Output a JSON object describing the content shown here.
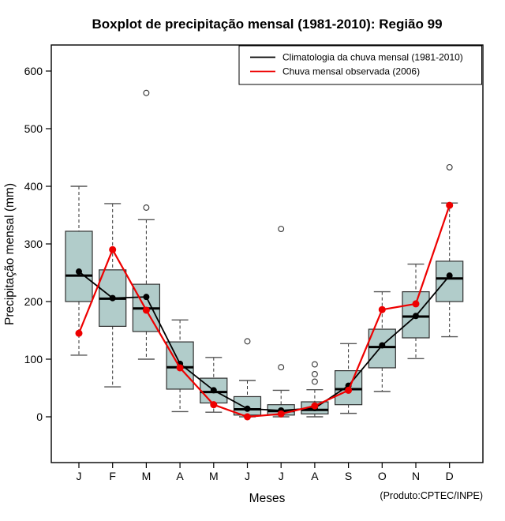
{
  "title": "Boxplot de precipitação mensal (1981-2010): Região 99",
  "x_axis": {
    "label": "Meses",
    "ticks": [
      "J",
      "F",
      "M",
      "A",
      "M",
      "J",
      "J",
      "A",
      "S",
      "O",
      "N",
      "D"
    ]
  },
  "y_axis": {
    "label": "Precipitação mensal (mm)",
    "ticks": [
      0,
      100,
      200,
      300,
      400,
      500,
      600
    ]
  },
  "legend": [
    {
      "label": "Climatologia da chuva mensal (1981-2010)",
      "color": "#000000"
    },
    {
      "label": "Chuva mensal observada (2006)",
      "color": "#ee0000"
    }
  ],
  "footnote": "(Produto:CPTEC/INPE)",
  "colors": {
    "box_fill": "#b1ccca",
    "box_stroke": "#2f2f2f",
    "whisker": "#333333",
    "cap": "#555555",
    "climatology_line": "#000000",
    "observed_line": "#ee0000",
    "frame": "#000000"
  },
  "chart_data": {
    "type": "boxplot",
    "title": "Boxplot de precipitação mensal (1981-2010): Região 99",
    "xlabel": "Meses",
    "ylabel": "Precipitação mensal (mm)",
    "categories": [
      "J",
      "F",
      "M",
      "A",
      "M",
      "J",
      "J",
      "A",
      "S",
      "O",
      "N",
      "D"
    ],
    "yticks": [
      0,
      100,
      200,
      300,
      400,
      500,
      600
    ],
    "ylim": [
      -75,
      645
    ],
    "grid": false,
    "legend_position": "topright",
    "boxes": [
      {
        "month": "Jan",
        "q1": 200,
        "median": 245,
        "q3": 322,
        "whisker_low": 107,
        "whisker_high": 400,
        "outliers": []
      },
      {
        "month": "Fev",
        "q1": 157,
        "median": 205,
        "q3": 255,
        "whisker_low": 52,
        "whisker_high": 370,
        "outliers": []
      },
      {
        "month": "Mar",
        "q1": 148,
        "median": 188,
        "q3": 230,
        "whisker_low": 100,
        "whisker_high": 342,
        "outliers": [
          363,
          562
        ]
      },
      {
        "month": "Abr",
        "q1": 48,
        "median": 86,
        "q3": 130,
        "whisker_low": 9,
        "whisker_high": 168,
        "outliers": []
      },
      {
        "month": "Mai",
        "q1": 24,
        "median": 43,
        "q3": 67,
        "whisker_low": 8,
        "whisker_high": 103,
        "outliers": []
      },
      {
        "month": "Jun",
        "q1": 3,
        "median": 13,
        "q3": 35,
        "whisker_low": 0,
        "whisker_high": 63,
        "outliers": [
          131
        ]
      },
      {
        "month": "Jul",
        "q1": 3,
        "median": 10,
        "q3": 21,
        "whisker_low": 0,
        "whisker_high": 46,
        "outliers": [
          86,
          326
        ]
      },
      {
        "month": "Ago",
        "q1": 5,
        "median": 12,
        "q3": 26,
        "whisker_low": 0,
        "whisker_high": 47,
        "outliers": [
          61,
          74,
          91
        ]
      },
      {
        "month": "Set",
        "q1": 21,
        "median": 48,
        "q3": 80,
        "whisker_low": 6,
        "whisker_high": 127,
        "outliers": []
      },
      {
        "month": "Out",
        "q1": 85,
        "median": 121,
        "q3": 152,
        "whisker_low": 44,
        "whisker_high": 217,
        "outliers": []
      },
      {
        "month": "Nov",
        "q1": 137,
        "median": 174,
        "q3": 217,
        "whisker_low": 101,
        "whisker_high": 265,
        "outliers": []
      },
      {
        "month": "Dez",
        "q1": 200,
        "median": 240,
        "q3": 270,
        "whisker_low": 139,
        "whisker_high": 371,
        "outliers": [
          433
        ]
      }
    ],
    "series": [
      {
        "name": "Climatologia da chuva mensal (1981-2010)",
        "color": "#000000",
        "values": [
          252,
          206,
          208,
          92,
          46,
          14,
          11,
          15,
          54,
          124,
          175,
          245
        ]
      },
      {
        "name": "Chuva mensal observada (2006)",
        "color": "#ee0000",
        "values": [
          145,
          290,
          185,
          85,
          21,
          0,
          5,
          19,
          46,
          186,
          196,
          367
        ]
      }
    ]
  }
}
